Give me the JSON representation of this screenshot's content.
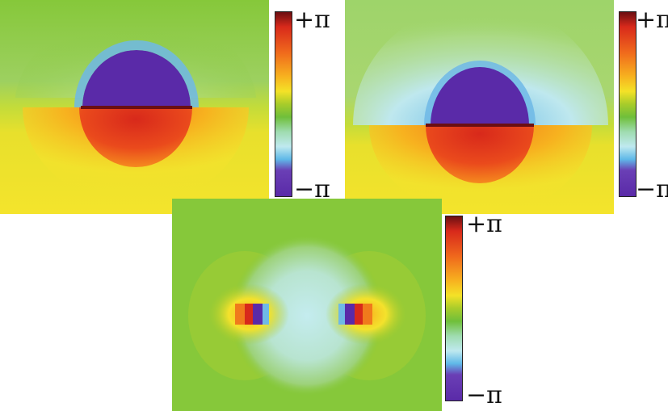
{
  "panels": [
    {
      "name": "panel-top-left",
      "pattern": "split-disk"
    },
    {
      "name": "panel-top-right",
      "pattern": "split-disk"
    },
    {
      "name": "panel-bottom",
      "pattern": "dipole-pair"
    }
  ],
  "colorbar": {
    "top_label": "+π",
    "bottom_label": "−π",
    "colors": [
      "#6b0f12",
      "#d8291b",
      "#f06a1c",
      "#f7b21f",
      "#f4e227",
      "#a8cc2a",
      "#6fbf3a",
      "#9fdcb0",
      "#bfe9ef",
      "#5fb8e8",
      "#6a3fb5",
      "#5a2aa8"
    ]
  },
  "colorbars": [
    {
      "name": "colorbar-top-left",
      "top_label": "+π",
      "bottom_label": "−π"
    },
    {
      "name": "colorbar-top-right",
      "top_label": "+π",
      "bottom_label": "−π"
    },
    {
      "name": "colorbar-bottom",
      "top_label": "+π",
      "bottom_label": "−π"
    }
  ]
}
